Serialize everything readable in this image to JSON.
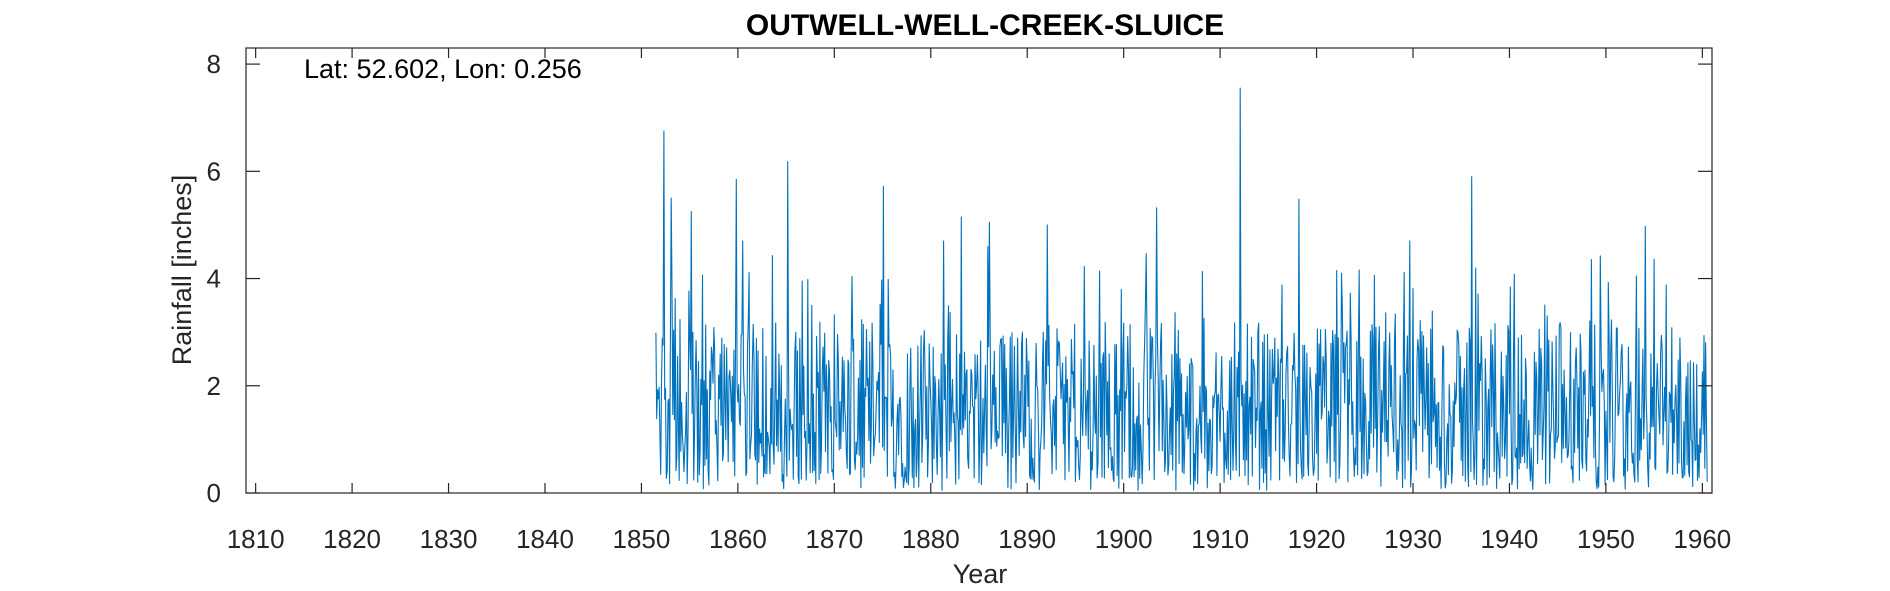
{
  "chart_data": {
    "type": "line",
    "title": "OUTWELL-WELL-CREEK-SLUICE",
    "annotation": "Lat: 52.602, Lon: 0.256",
    "xlabel": "Year",
    "ylabel": "Rainfall [inches]",
    "xlim": [
      1809,
      1961
    ],
    "ylim": [
      0,
      8.3
    ],
    "xticks": [
      1810,
      1820,
      1830,
      1840,
      1850,
      1860,
      1870,
      1880,
      1890,
      1900,
      1910,
      1920,
      1930,
      1940,
      1950,
      1960
    ],
    "yticks": [
      0,
      2,
      4,
      6,
      8
    ],
    "grid": false,
    "line_color": "#0072BD",
    "series": [
      {
        "name": "",
        "resolution": "monthly",
        "start": 1851.5,
        "end": 1960.5,
        "peaks": [
          {
            "x": 1852.3,
            "y": 6.75
          },
          {
            "x": 1853.1,
            "y": 5.5
          },
          {
            "x": 1855.2,
            "y": 5.25
          },
          {
            "x": 1859.8,
            "y": 5.85
          },
          {
            "x": 1865.2,
            "y": 6.18
          },
          {
            "x": 1875.1,
            "y": 5.72
          },
          {
            "x": 1883.2,
            "y": 5.15
          },
          {
            "x": 1886.1,
            "y": 5.05
          },
          {
            "x": 1892.1,
            "y": 5.0
          },
          {
            "x": 1903.4,
            "y": 5.32
          },
          {
            "x": 1912.1,
            "y": 7.55
          },
          {
            "x": 1918.2,
            "y": 5.48
          },
          {
            "x": 1936.1,
            "y": 5.9
          },
          {
            "x": 1954.1,
            "y": 4.97
          }
        ]
      }
    ]
  }
}
